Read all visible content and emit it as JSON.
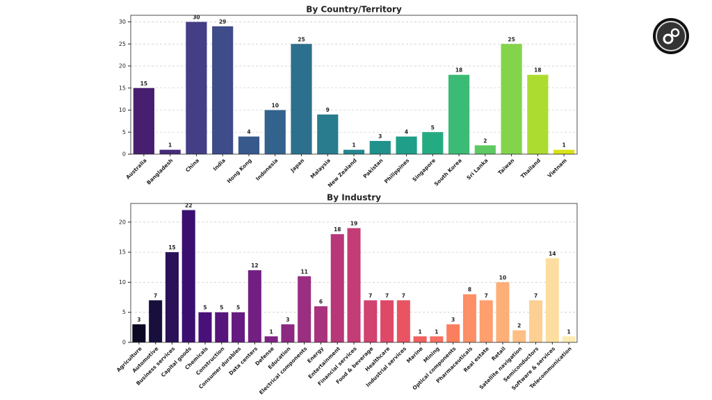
{
  "chart_data": [
    {
      "type": "bar",
      "title": "By Country/Territory",
      "categories": [
        "Australia",
        "Bangladesh",
        "China",
        "India",
        "Hong Kong",
        "Indonesia",
        "Japan",
        "Malaysia",
        "New Zealand",
        "Pakistan",
        "Philippines",
        "Singapore",
        "South Korea",
        "Sri Lanka",
        "Taiwan",
        "Thailand",
        "Vietnam"
      ],
      "values": [
        15,
        1,
        30,
        29,
        4,
        10,
        25,
        9,
        1,
        3,
        4,
        5,
        18,
        2,
        25,
        18,
        1
      ],
      "colors": [
        "#481f70",
        "#472c7a",
        "#433e85",
        "#3e4c8a",
        "#38598c",
        "#33638d",
        "#2d708e",
        "#287c8e",
        "#24868e",
        "#21918c",
        "#1f9e89",
        "#25ab82",
        "#3bbb75",
        "#5ec962",
        "#84d44b",
        "#addc30",
        "#d8e219"
      ],
      "ylim": [
        0,
        31.5
      ],
      "yticks": [
        0,
        5,
        10,
        15,
        20,
        25,
        30
      ],
      "grid": true
    },
    {
      "type": "bar",
      "title": "By Industry",
      "categories": [
        "Agriculture",
        "Automotive",
        "Business services",
        "Capital goods",
        "Chemicals",
        "Construction",
        "Consumer durables",
        "Data centers",
        "Defense",
        "Education",
        "Electrical components",
        "Energy",
        "Entertainment",
        "Financial services",
        "Food & beverage",
        "Healthcare",
        "Industrial services",
        "Marine",
        "Mining",
        "Optical components",
        "Pharmaceuticals",
        "Real estate",
        "Retail",
        "Satellite navigation",
        "Semiconductors",
        "Software & services",
        "Telecommunication"
      ],
      "values": [
        3,
        7,
        15,
        22,
        5,
        5,
        5,
        12,
        1,
        3,
        11,
        6,
        18,
        19,
        7,
        7,
        7,
        1,
        1,
        3,
        8,
        7,
        10,
        2,
        7,
        14,
        1
      ],
      "colors": [
        "#0b0924",
        "#180f3d",
        "#2a1158",
        "#3b0f70",
        "#4a1079",
        "#56147d",
        "#641a80",
        "#721f81",
        "#7f2482",
        "#8c2981",
        "#9a2e80",
        "#a8327d",
        "#b73779",
        "#c43c75",
        "#d1426f",
        "#de4968",
        "#e95462",
        "#f1605d",
        "#f67063",
        "#fa7f5e",
        "#fc8f65",
        "#fe9f6d",
        "#feae77",
        "#febf84",
        "#fecf92",
        "#fddea0",
        "#fcecb3"
      ],
      "ylim": [
        0,
        23.1
      ],
      "yticks": [
        0,
        5,
        10,
        15,
        20
      ],
      "grid": true
    }
  ]
}
